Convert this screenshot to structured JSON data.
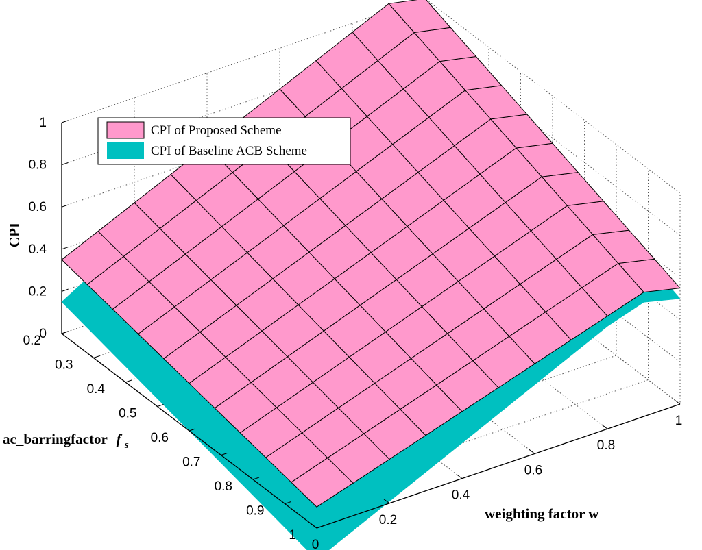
{
  "chart_data": {
    "type": "surface",
    "x_axis": {
      "label": "weighting factor  w",
      "range": [
        0,
        1
      ],
      "ticks": [
        0,
        0.2,
        0.4,
        0.6,
        0.8,
        1
      ],
      "tick_labels": [
        "0",
        "0.2",
        "0.4",
        "0.6",
        "0.8",
        "1"
      ]
    },
    "y_axis": {
      "label": "ac_barringfactor",
      "label_symbol": "f",
      "label_subscript": "s",
      "range": [
        0.2,
        1
      ],
      "ticks": [
        0.2,
        0.3,
        0.4,
        0.5,
        0.6,
        0.7,
        0.8,
        0.9,
        1
      ],
      "tick_labels": [
        "0.2",
        "0.3",
        "0.4",
        "0.5",
        "0.6",
        "0.7",
        "0.8",
        "0.9",
        "1"
      ]
    },
    "z_axis": {
      "label": "CPI",
      "range": [
        0,
        1
      ],
      "ticks": [
        0,
        0.2,
        0.4,
        0.6,
        0.8,
        1
      ],
      "tick_labels": [
        "0",
        "0.2",
        "0.4",
        "0.6",
        "0.8",
        "1"
      ]
    },
    "grid": true,
    "legend": {
      "placement": "top-left"
    },
    "series": [
      {
        "name": "CPI of Proposed Scheme",
        "color": "#ff99cc",
        "edge_color": "#000000",
        "corners": {
          "w0_f0.2": 0.35,
          "w0_f1": 0.1,
          "w1_f0.2": 1.0,
          "w1_f1": 0.55
        },
        "w_peak": 0.92
      },
      {
        "name": "CPI of Baseline ACB Scheme",
        "color": "#00c0c0",
        "edge_color": "none",
        "corners": {
          "w0_f0.2": 0.15,
          "w0_f1": -0.15,
          "w1_f0.2": 0.98,
          "w1_f1": 0.5
        },
        "w_peak": 0.88
      }
    ]
  }
}
